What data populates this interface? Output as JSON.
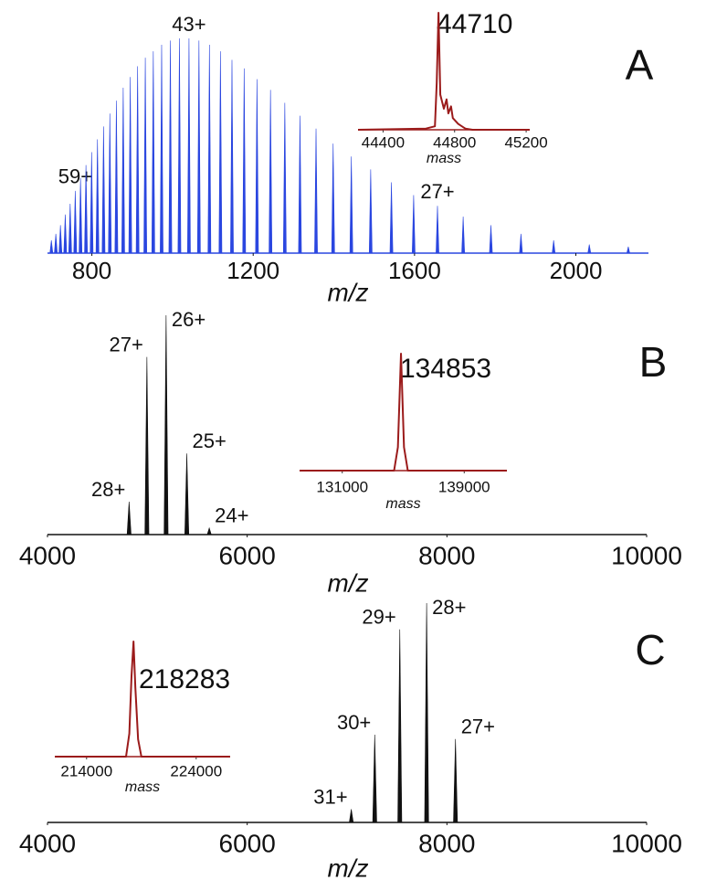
{
  "chart_data": [
    {
      "type": "spectrum",
      "panel_label": "A",
      "xlabel": "m/z",
      "color": "#2a46e0",
      "xlim": [
        690,
        2180
      ],
      "xticks": [
        800,
        1200,
        1600,
        2000
      ],
      "ylim": [
        0,
        100
      ],
      "x": [
        699.6,
        710.7,
        722.1,
        734.0,
        746.2,
        758.8,
        771.9,
        785.4,
        799.4,
        813.9,
        829.0,
        844.6,
        860.8,
        877.7,
        895.2,
        913.4,
        932.5,
        952.3,
        973.0,
        994.6,
        1017.1,
        1040.8,
        1065.5,
        1091.5,
        1118.8,
        1147.4,
        1177.6,
        1209.4,
        1242.9,
        1278.4,
        1316.0,
        1355.8,
        1398.2,
        1443.3,
        1491.3,
        1542.7,
        1597.8,
        1656.9,
        1720.6,
        1789.4,
        1863.9,
        1944.9,
        2033.3,
        2130.0
      ],
      "values": [
        6,
        9,
        13,
        18,
        23,
        29,
        35,
        41,
        47,
        53,
        59,
        65,
        71,
        77,
        82,
        87,
        91,
        94,
        97,
        99,
        100,
        100,
        99,
        97,
        94,
        90,
        86,
        81,
        76,
        70,
        64,
        58,
        51,
        45,
        39,
        33,
        27,
        22,
        17,
        13,
        9,
        6,
        4,
        3
      ],
      "labels": [
        null,
        null,
        null,
        null,
        null,
        "59+",
        null,
        null,
        null,
        null,
        null,
        null,
        null,
        null,
        null,
        null,
        null,
        null,
        null,
        null,
        null,
        "43+",
        null,
        null,
        null,
        null,
        null,
        null,
        null,
        null,
        null,
        null,
        null,
        null,
        null,
        null,
        null,
        "27+",
        null,
        null,
        null,
        null,
        null,
        null
      ]
    },
    {
      "type": "line",
      "annotation": "44710",
      "xlabel": "mass",
      "color": "#9b1b1b",
      "xlim": [
        44260,
        45220
      ],
      "xticks": [
        44400,
        44800,
        45200
      ],
      "ylim": [
        0,
        100
      ],
      "x": [
        44260,
        44640,
        44690,
        44700,
        44710,
        44720,
        44740,
        44755,
        44765,
        44780,
        44790,
        44820,
        44860,
        44900,
        45220
      ],
      "values": [
        0,
        1,
        3,
        40,
        100,
        30,
        18,
        26,
        14,
        20,
        10,
        5,
        1,
        0,
        0
      ]
    },
    {
      "type": "spectrum",
      "panel_label": "B",
      "xlabel": "m/z",
      "color": "#111111",
      "xlim": [
        4000,
        10000
      ],
      "xticks": [
        4000,
        6000,
        8000,
        10000
      ],
      "ylim": [
        0,
        100
      ],
      "x": [
        4817.2,
        4995.5,
        5187.7,
        5395.1,
        5619.9
      ],
      "values": [
        15,
        81,
        100,
        37,
        3
      ],
      "labels": [
        "28+",
        "27+",
        "26+",
        "25+",
        "24+"
      ]
    },
    {
      "type": "line",
      "annotation": "134853",
      "xlabel": "mass",
      "color": "#9b1b1b",
      "xlim": [
        128200,
        141800
      ],
      "xticks": [
        131000,
        139000
      ],
      "ylim": [
        0,
        100
      ],
      "x": [
        128200,
        134400,
        134650,
        134853,
        135050,
        135300,
        141800
      ],
      "values": [
        0,
        0,
        20,
        100,
        20,
        0,
        0
      ]
    },
    {
      "type": "spectrum",
      "panel_label": "C",
      "xlabel": "m/z",
      "color": "#111111",
      "xlim": [
        4000,
        10000
      ],
      "xticks": [
        4000,
        6000,
        8000,
        10000
      ],
      "ylim": [
        0,
        100
      ],
      "x": [
        7042.4,
        7277.1,
        7528.0,
        7796.8,
        8085.6
      ],
      "values": [
        6,
        40,
        88,
        100,
        38
      ],
      "labels": [
        "31+",
        "30+",
        "29+",
        "28+",
        "27+"
      ]
    },
    {
      "type": "line",
      "annotation": "218283",
      "xlabel": "mass",
      "color": "#9b1b1b",
      "xlim": [
        211100,
        227100
      ],
      "xticks": [
        214000,
        224000
      ],
      "ylim": [
        0,
        100
      ],
      "x": [
        211100,
        217600,
        217900,
        218100,
        218283,
        218450,
        218700,
        219000,
        227100
      ],
      "values": [
        0,
        0,
        20,
        70,
        100,
        60,
        15,
        0,
        0
      ]
    }
  ]
}
